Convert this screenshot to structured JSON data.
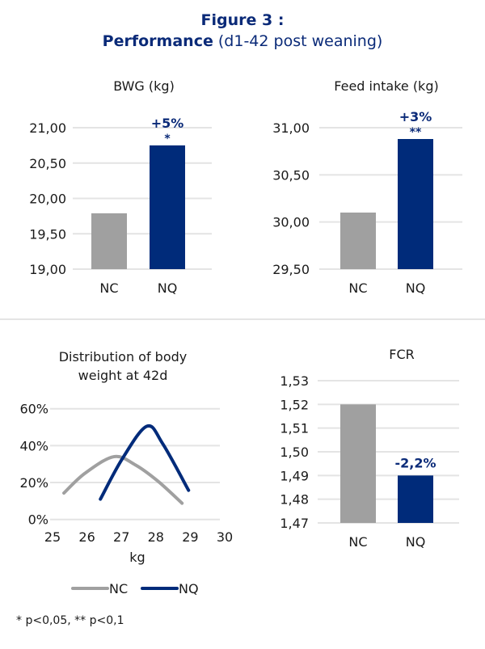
{
  "figure": {
    "title_line1": "Figure 3 :",
    "title_bold": "Performance",
    "title_rest": " (d1-42 post weaning)"
  },
  "colors": {
    "NC": "#a0a0a0",
    "NQ": "#002b7a",
    "grid": "#e4e4e4",
    "accent_text": "#0a2a78"
  },
  "footnote": "* p<0,05, ** p<0,1",
  "chart_data": [
    {
      "id": "bwg",
      "type": "bar",
      "title": "BWG (kg)",
      "categories": [
        "NC",
        "NQ"
      ],
      "values": [
        19.79,
        20.75
      ],
      "ylim": [
        19.0,
        21.0
      ],
      "yticks": [
        19.0,
        19.5,
        20.0,
        20.5,
        21.0
      ],
      "ytick_labels": [
        "19,00",
        "19,50",
        "20,00",
        "20,50",
        "21,00"
      ],
      "annotations": [
        {
          "category": "NQ",
          "pct": "+5%",
          "sig": "*"
        }
      ],
      "grid": true
    },
    {
      "id": "feed",
      "type": "bar",
      "title": "Feed intake (kg)",
      "categories": [
        "NC",
        "NQ"
      ],
      "values": [
        30.1,
        30.88
      ],
      "ylim": [
        29.5,
        31.0
      ],
      "yticks": [
        29.5,
        30.0,
        30.5,
        31.0
      ],
      "ytick_labels": [
        "29,50",
        "30,00",
        "30,50",
        "31,00"
      ],
      "annotations": [
        {
          "category": "NQ",
          "pct": "+3%",
          "sig": "**"
        }
      ],
      "grid": true
    },
    {
      "id": "dist",
      "type": "line",
      "title_lines": [
        "Distribution of body",
        "weight at 42d"
      ],
      "xlabel": "kg",
      "xlim": [
        25,
        30
      ],
      "xticks": [
        25,
        26,
        27,
        28,
        29,
        30
      ],
      "ylim": [
        0,
        60
      ],
      "yticks": [
        0,
        20,
        40,
        60
      ],
      "ytick_labels": [
        "0%",
        "20%",
        "40%",
        "60%"
      ],
      "series": [
        {
          "name": "NC",
          "x": [
            25.33,
            25.94,
            26.78,
            27.4,
            28.05,
            28.76
          ],
          "y": [
            14.3,
            25,
            34,
            29.6,
            20.9,
            8.8
          ]
        },
        {
          "name": "NQ",
          "x": [
            26.39,
            27.03,
            27.74,
            28.2,
            28.95
          ],
          "y": [
            11,
            33,
            50.5,
            41,
            15.8
          ]
        }
      ],
      "legend": {
        "placement": "bottom",
        "entries": [
          "NC",
          "NQ"
        ]
      },
      "grid": true
    },
    {
      "id": "fcr",
      "type": "bar",
      "title": "FCR",
      "categories": [
        "NC",
        "NQ"
      ],
      "values": [
        1.52,
        1.49
      ],
      "ylim": [
        1.47,
        1.53
      ],
      "yticks": [
        1.47,
        1.48,
        1.49,
        1.5,
        1.51,
        1.52,
        1.53
      ],
      "ytick_labels": [
        "1,47",
        "1,48",
        "1,49",
        "1,50",
        "1,51",
        "1,52",
        "1,53"
      ],
      "annotations": [
        {
          "category": "NQ",
          "pct": "-2,2%",
          "sig": ""
        }
      ],
      "grid": true
    }
  ]
}
